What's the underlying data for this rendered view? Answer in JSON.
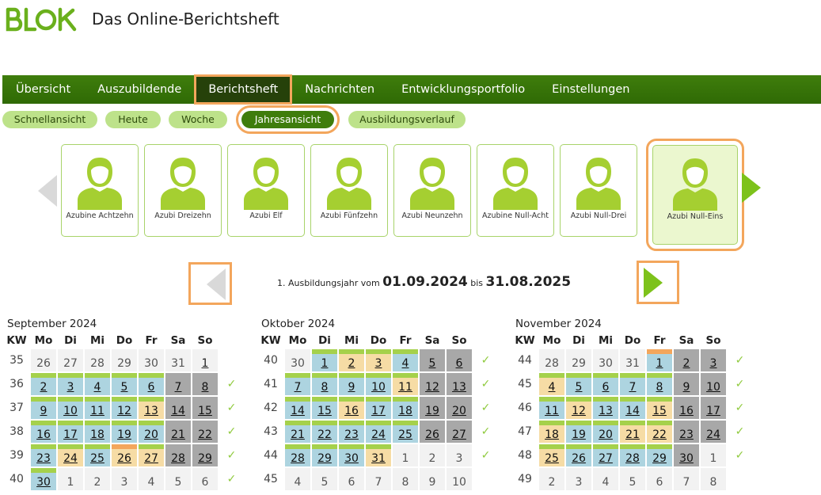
{
  "header": {
    "logo_text": "BLOK",
    "title": "Das Online-Berichtsheft"
  },
  "mainnav": [
    "Übersicht",
    "Auszubildende",
    "Berichtsheft",
    "Nachrichten",
    "Entwicklungsportfolio",
    "Einstellungen"
  ],
  "mainnav_active": "Berichtsheft",
  "subnav": [
    "Schnellansicht",
    "Heute",
    "Woche",
    "Jahresansicht",
    "Ausbildungsverlauf"
  ],
  "subnav_active": "Jahresansicht",
  "trainees": [
    "Azubine Achtzehn",
    "Azubi Dreizehn",
    "Azubi Elf",
    "Azubi Fünfzehn",
    "Azubi Neunzehn",
    "Azubine Null-Acht",
    "Azubi Null-Drei",
    "Azubi Null-Eins"
  ],
  "trainee_selected": "Azubi Null-Eins",
  "year": {
    "prefix": "1. Ausbildungsjahr vom",
    "start": "01.09.2024",
    "mid": "bis",
    "end": "31.08.2025"
  },
  "weekday_headers": [
    "KW",
    "Mo",
    "Di",
    "Mi",
    "Do",
    "Fr",
    "Sa",
    "So"
  ],
  "check_symbol": "✓",
  "colors": {
    "work": "#add4e0",
    "vacation": "#f6dca5",
    "weekend": "#a8a8a8",
    "outside": "#f2f2f2",
    "accent": "#a5d14b",
    "highlight": "#f3a65c"
  },
  "months": [
    {
      "title": "September 2024",
      "weeks": [
        {
          "kw": "35",
          "check": false,
          "days": [
            [
              "26",
              "o"
            ],
            [
              "27",
              "o"
            ],
            [
              "28",
              "o"
            ],
            [
              "29",
              "o"
            ],
            [
              "30",
              "o"
            ],
            [
              "31",
              "o"
            ],
            [
              "1",
              "n"
            ]
          ]
        },
        {
          "kw": "36",
          "check": true,
          "days": [
            [
              "2",
              "w"
            ],
            [
              "3",
              "w"
            ],
            [
              "4",
              "w"
            ],
            [
              "5",
              "w"
            ],
            [
              "6",
              "w"
            ],
            [
              "7",
              "e"
            ],
            [
              "8",
              "e"
            ]
          ]
        },
        {
          "kw": "37",
          "check": true,
          "days": [
            [
              "9",
              "w"
            ],
            [
              "10",
              "w"
            ],
            [
              "11",
              "w"
            ],
            [
              "12",
              "w"
            ],
            [
              "13",
              "v"
            ],
            [
              "14",
              "e"
            ],
            [
              "15",
              "e"
            ]
          ]
        },
        {
          "kw": "38",
          "check": true,
          "days": [
            [
              "16",
              "w"
            ],
            [
              "17",
              "w"
            ],
            [
              "18",
              "w"
            ],
            [
              "19",
              "w"
            ],
            [
              "20",
              "w"
            ],
            [
              "21",
              "e"
            ],
            [
              "22",
              "e"
            ]
          ]
        },
        {
          "kw": "39",
          "check": true,
          "days": [
            [
              "23",
              "w"
            ],
            [
              "24",
              "v"
            ],
            [
              "25",
              "w"
            ],
            [
              "26",
              "vh"
            ],
            [
              "27",
              "v"
            ],
            [
              "28",
              "e"
            ],
            [
              "29",
              "e"
            ]
          ]
        },
        {
          "kw": "40",
          "check": true,
          "days": [
            [
              "30",
              "w"
            ],
            [
              "1",
              "o"
            ],
            [
              "2",
              "o"
            ],
            [
              "3",
              "o"
            ],
            [
              "4",
              "o"
            ],
            [
              "5",
              "o"
            ],
            [
              "6",
              "o"
            ]
          ]
        }
      ]
    },
    {
      "title": "Oktober 2024",
      "weeks": [
        {
          "kw": "40",
          "check": true,
          "days": [
            [
              "30",
              "o"
            ],
            [
              "1",
              "w"
            ],
            [
              "2",
              "v"
            ],
            [
              "3",
              "v"
            ],
            [
              "4",
              "w"
            ],
            [
              "5",
              "e"
            ],
            [
              "6",
              "e"
            ]
          ]
        },
        {
          "kw": "41",
          "check": true,
          "days": [
            [
              "7",
              "w"
            ],
            [
              "8",
              "w"
            ],
            [
              "9",
              "w"
            ],
            [
              "10",
              "w"
            ],
            [
              "11",
              "v"
            ],
            [
              "12",
              "e"
            ],
            [
              "13",
              "e"
            ]
          ]
        },
        {
          "kw": "42",
          "check": true,
          "days": [
            [
              "14",
              "w"
            ],
            [
              "15",
              "w"
            ],
            [
              "16",
              "v"
            ],
            [
              "17",
              "w"
            ],
            [
              "18",
              "w"
            ],
            [
              "19",
              "e"
            ],
            [
              "20",
              "e"
            ]
          ]
        },
        {
          "kw": "43",
          "check": true,
          "days": [
            [
              "21",
              "w"
            ],
            [
              "22",
              "w"
            ],
            [
              "23",
              "w"
            ],
            [
              "24",
              "w"
            ],
            [
              "25",
              "w"
            ],
            [
              "26",
              "e"
            ],
            [
              "27",
              "e"
            ]
          ]
        },
        {
          "kw": "44",
          "check": true,
          "days": [
            [
              "28",
              "w"
            ],
            [
              "29",
              "w"
            ],
            [
              "30",
              "w"
            ],
            [
              "31",
              "v"
            ],
            [
              "1",
              "o"
            ],
            [
              "2",
              "o"
            ],
            [
              "3",
              "o"
            ]
          ]
        },
        {
          "kw": "45",
          "check": false,
          "days": [
            [
              "4",
              "o"
            ],
            [
              "5",
              "o"
            ],
            [
              "6",
              "o"
            ],
            [
              "7",
              "o"
            ],
            [
              "8",
              "o"
            ],
            [
              "9",
              "o"
            ],
            [
              "10",
              "o"
            ]
          ]
        }
      ]
    },
    {
      "title": "November 2024",
      "weeks": [
        {
          "kw": "44",
          "check": true,
          "days": [
            [
              "28",
              "o"
            ],
            [
              "29",
              "o"
            ],
            [
              "30",
              "o"
            ],
            [
              "31",
              "o"
            ],
            [
              "1",
              "wh"
            ],
            [
              "2",
              "e"
            ],
            [
              "3",
              "e"
            ]
          ]
        },
        {
          "kw": "45",
          "check": true,
          "days": [
            [
              "4",
              "v"
            ],
            [
              "5",
              "w"
            ],
            [
              "6",
              "w"
            ],
            [
              "7",
              "w"
            ],
            [
              "8",
              "w"
            ],
            [
              "9",
              "e"
            ],
            [
              "10",
              "e"
            ]
          ]
        },
        {
          "kw": "46",
          "check": true,
          "days": [
            [
              "11",
              "w"
            ],
            [
              "12",
              "v"
            ],
            [
              "13",
              "w"
            ],
            [
              "14",
              "w"
            ],
            [
              "15",
              "v"
            ],
            [
              "16",
              "e"
            ],
            [
              "17",
              "e"
            ]
          ]
        },
        {
          "kw": "47",
          "check": true,
          "days": [
            [
              "18",
              "v"
            ],
            [
              "19",
              "w"
            ],
            [
              "20",
              "w"
            ],
            [
              "21",
              "v"
            ],
            [
              "22",
              "v"
            ],
            [
              "23",
              "e"
            ],
            [
              "24",
              "e"
            ]
          ]
        },
        {
          "kw": "48",
          "check": true,
          "days": [
            [
              "25",
              "v"
            ],
            [
              "26",
              "w"
            ],
            [
              "27",
              "w"
            ],
            [
              "28",
              "w"
            ],
            [
              "29",
              "w"
            ],
            [
              "30",
              "e"
            ],
            [
              "1",
              "o"
            ]
          ]
        },
        {
          "kw": "49",
          "check": false,
          "days": [
            [
              "2",
              "o"
            ],
            [
              "3",
              "o"
            ],
            [
              "4",
              "o"
            ],
            [
              "5",
              "o"
            ],
            [
              "6",
              "o"
            ],
            [
              "7",
              "o"
            ],
            [
              "8",
              "o"
            ]
          ]
        }
      ]
    }
  ]
}
